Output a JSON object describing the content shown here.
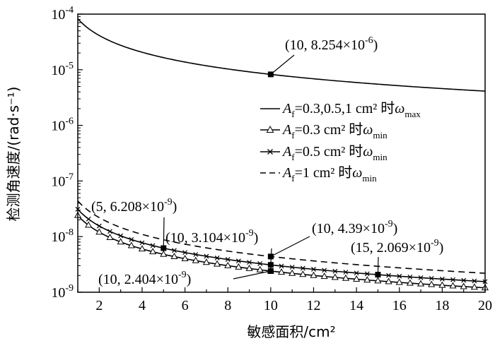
{
  "chart_data": {
    "type": "line",
    "xlabel": "敏感面积/cm²",
    "ylabel": "检测角速度/(rad·s⁻¹)",
    "xlim": [
      1,
      20
    ],
    "ylim": [
      1e-09,
      0.0001
    ],
    "yscale": "log",
    "grid": false,
    "legend_placement": "right",
    "x_ticks": [
      2,
      4,
      6,
      8,
      10,
      12,
      14,
      16,
      18,
      20
    ],
    "x_tick_labels": [
      "2",
      "4",
      "6",
      "8",
      "10",
      "12",
      "14",
      "16",
      "18",
      "20"
    ],
    "y_ticks": [
      1e-09,
      1e-08,
      1e-07,
      1e-06,
      1e-05,
      0.0001
    ],
    "y_tick_labels": [
      {
        "base": "10",
        "exp": "-9"
      },
      {
        "base": "10",
        "exp": "-8"
      },
      {
        "base": "10",
        "exp": "-7"
      },
      {
        "base": "10",
        "exp": "-6"
      },
      {
        "base": "10",
        "exp": "-5"
      },
      {
        "base": "10",
        "exp": "-4"
      }
    ],
    "series": [
      {
        "id": "wmax",
        "legend": {
          "prefix": "A",
          "sub": "f",
          "mid": "=0.3,0.5,1 cm² 时",
          "omega": "ω",
          "sub2": "max"
        },
        "line": "solid",
        "marker": "none",
        "k": 8.254e-05
      },
      {
        "id": "wmin03",
        "legend": {
          "prefix": "A",
          "sub": "f",
          "mid": "=0.3 cm² 时",
          "omega": "ω",
          "sub2": "min"
        },
        "line": "solid",
        "marker": "triangle",
        "k": 2.404e-08
      },
      {
        "id": "wmin05",
        "legend": {
          "prefix": "A",
          "sub": "f",
          "mid": "=0.5 cm² 时",
          "omega": "ω",
          "sub2": "min"
        },
        "line": "solid",
        "marker": "x",
        "k": 3.104e-08
      },
      {
        "id": "wmin1",
        "legend": {
          "prefix": "A",
          "sub": "f",
          "mid": "=1 cm² 时",
          "omega": "ω",
          "sub2": "min"
        },
        "line": "dashed",
        "marker": "none",
        "k": 4.39e-08
      }
    ],
    "annotations": [
      {
        "base": "(10, 8.254×10",
        "exp": "-6",
        "tail": ")",
        "x": 10,
        "y": 8.254e-06
      },
      {
        "base": "(5, 6.208×10",
        "exp": "-9",
        "tail": ")",
        "x": 5,
        "y": 6.208e-09
      },
      {
        "base": "(10, 3.104×10",
        "exp": "-9",
        "tail": ")",
        "x": 10,
        "y": 3.104e-09
      },
      {
        "base": "(10, 4.39×10",
        "exp": "-9",
        "tail": ")",
        "x": 10,
        "y": 4.39e-09
      },
      {
        "base": "(15, 2.069×10",
        "exp": "-9",
        "tail": ")",
        "x": 15,
        "y": 2.069e-09
      },
      {
        "base": "(10, 2.404×10",
        "exp": "-9",
        "tail": ")",
        "x": 10,
        "y": 2.404e-09
      }
    ]
  }
}
